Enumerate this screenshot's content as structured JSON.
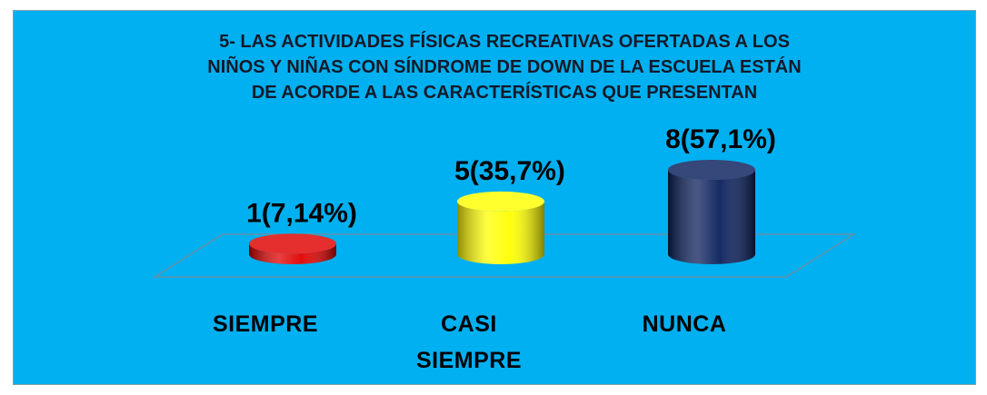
{
  "chart_data": {
    "type": "bar",
    "title": [
      "5- LAS ACTIVIDADES FÍSICAS RECREATIVAS OFERTADAS A LOS",
      "NIÑOS Y NIÑAS CON SÍNDROME DE DOWN DE LA ESCUELA ESTÁN",
      "DE ACORDE A LAS CARACTERÍSTICAS QUE PRESENTAN"
    ],
    "categories": [
      "SIEMPRE",
      "CASI SIEMPRE",
      "NUNCA"
    ],
    "values": [
      1,
      5,
      8
    ],
    "value_labels": [
      "1(7,14%)",
      "5(35,7%)",
      "8(57,1%)"
    ],
    "colors": [
      "#e00000",
      "#ffff00",
      "#0a1f5c"
    ]
  }
}
